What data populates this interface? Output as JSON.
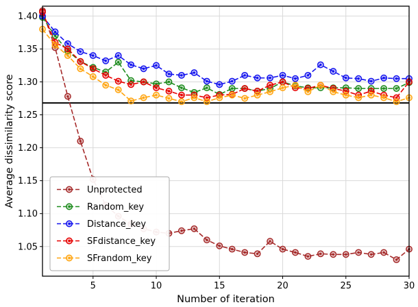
{
  "chart_data": {
    "type": "line",
    "title": "",
    "xlabel": "Number of iteration",
    "ylabel": "Average dissimilarity score",
    "xlim": [
      1,
      30
    ],
    "ylim": [
      1.005,
      1.415
    ],
    "xticks": [
      5,
      10,
      15,
      20,
      25,
      30
    ],
    "yticks": [
      1.05,
      1.1,
      1.15,
      1.2,
      1.25,
      1.3,
      1.35,
      1.4
    ],
    "grid": true,
    "linestyle": "dashed",
    "marker": "circle-dot",
    "legend_position": "lower left",
    "hline": {
      "y": 1.268,
      "color": "#000000",
      "width": 2
    },
    "colors": {
      "grid": "#d9d9d9",
      "axis": "#000000",
      "legend_border": "#aaaaaa",
      "background": "#ffffff"
    },
    "x": [
      1,
      2,
      3,
      4,
      5,
      6,
      7,
      8,
      9,
      10,
      11,
      12,
      13,
      14,
      15,
      16,
      17,
      18,
      19,
      20,
      21,
      22,
      23,
      24,
      25,
      26,
      27,
      28,
      29,
      30
    ],
    "series": [
      {
        "name": "Unprotected",
        "color": "#a52a2a",
        "values": [
          1.408,
          1.352,
          1.278,
          1.21,
          1.152,
          1.113,
          1.096,
          1.084,
          1.077,
          1.072,
          1.07,
          1.074,
          1.077,
          1.06,
          1.051,
          1.046,
          1.041,
          1.039,
          1.058,
          1.046,
          1.041,
          1.035,
          1.039,
          1.038,
          1.038,
          1.041,
          1.038,
          1.041,
          1.03,
          1.046
        ]
      },
      {
        "name": "Random_key",
        "color": "#1e8c1e",
        "values": [
          1.398,
          1.37,
          1.347,
          1.331,
          1.322,
          1.315,
          1.33,
          1.302,
          1.3,
          1.297,
          1.3,
          1.291,
          1.284,
          1.291,
          1.281,
          1.29,
          1.29,
          1.286,
          1.29,
          1.3,
          1.294,
          1.291,
          1.291,
          1.291,
          1.291,
          1.29,
          1.29,
          1.29,
          1.29,
          1.299
        ]
      },
      {
        "name": "Distance_key",
        "color": "#1414ee",
        "values": [
          1.4,
          1.376,
          1.358,
          1.346,
          1.34,
          1.332,
          1.34,
          1.326,
          1.32,
          1.325,
          1.312,
          1.31,
          1.314,
          1.301,
          1.296,
          1.301,
          1.31,
          1.306,
          1.306,
          1.31,
          1.305,
          1.31,
          1.326,
          1.316,
          1.306,
          1.305,
          1.301,
          1.306,
          1.305,
          1.305
        ]
      },
      {
        "name": "SFdistance_key",
        "color": "#e60000",
        "values": [
          1.406,
          1.36,
          1.35,
          1.331,
          1.32,
          1.31,
          1.301,
          1.296,
          1.3,
          1.291,
          1.286,
          1.28,
          1.28,
          1.276,
          1.28,
          1.281,
          1.29,
          1.286,
          1.295,
          1.3,
          1.291,
          1.29,
          1.295,
          1.29,
          1.286,
          1.28,
          1.286,
          1.28,
          1.276,
          1.3
        ]
      },
      {
        "name": "SFrandom_key",
        "color": "#ffa510",
        "values": [
          1.38,
          1.356,
          1.34,
          1.32,
          1.308,
          1.295,
          1.288,
          1.271,
          1.276,
          1.28,
          1.275,
          1.27,
          1.276,
          1.27,
          1.276,
          1.28,
          1.275,
          1.28,
          1.285,
          1.291,
          1.295,
          1.285,
          1.295,
          1.285,
          1.28,
          1.276,
          1.28,
          1.276,
          1.27,
          1.276
        ]
      }
    ]
  }
}
